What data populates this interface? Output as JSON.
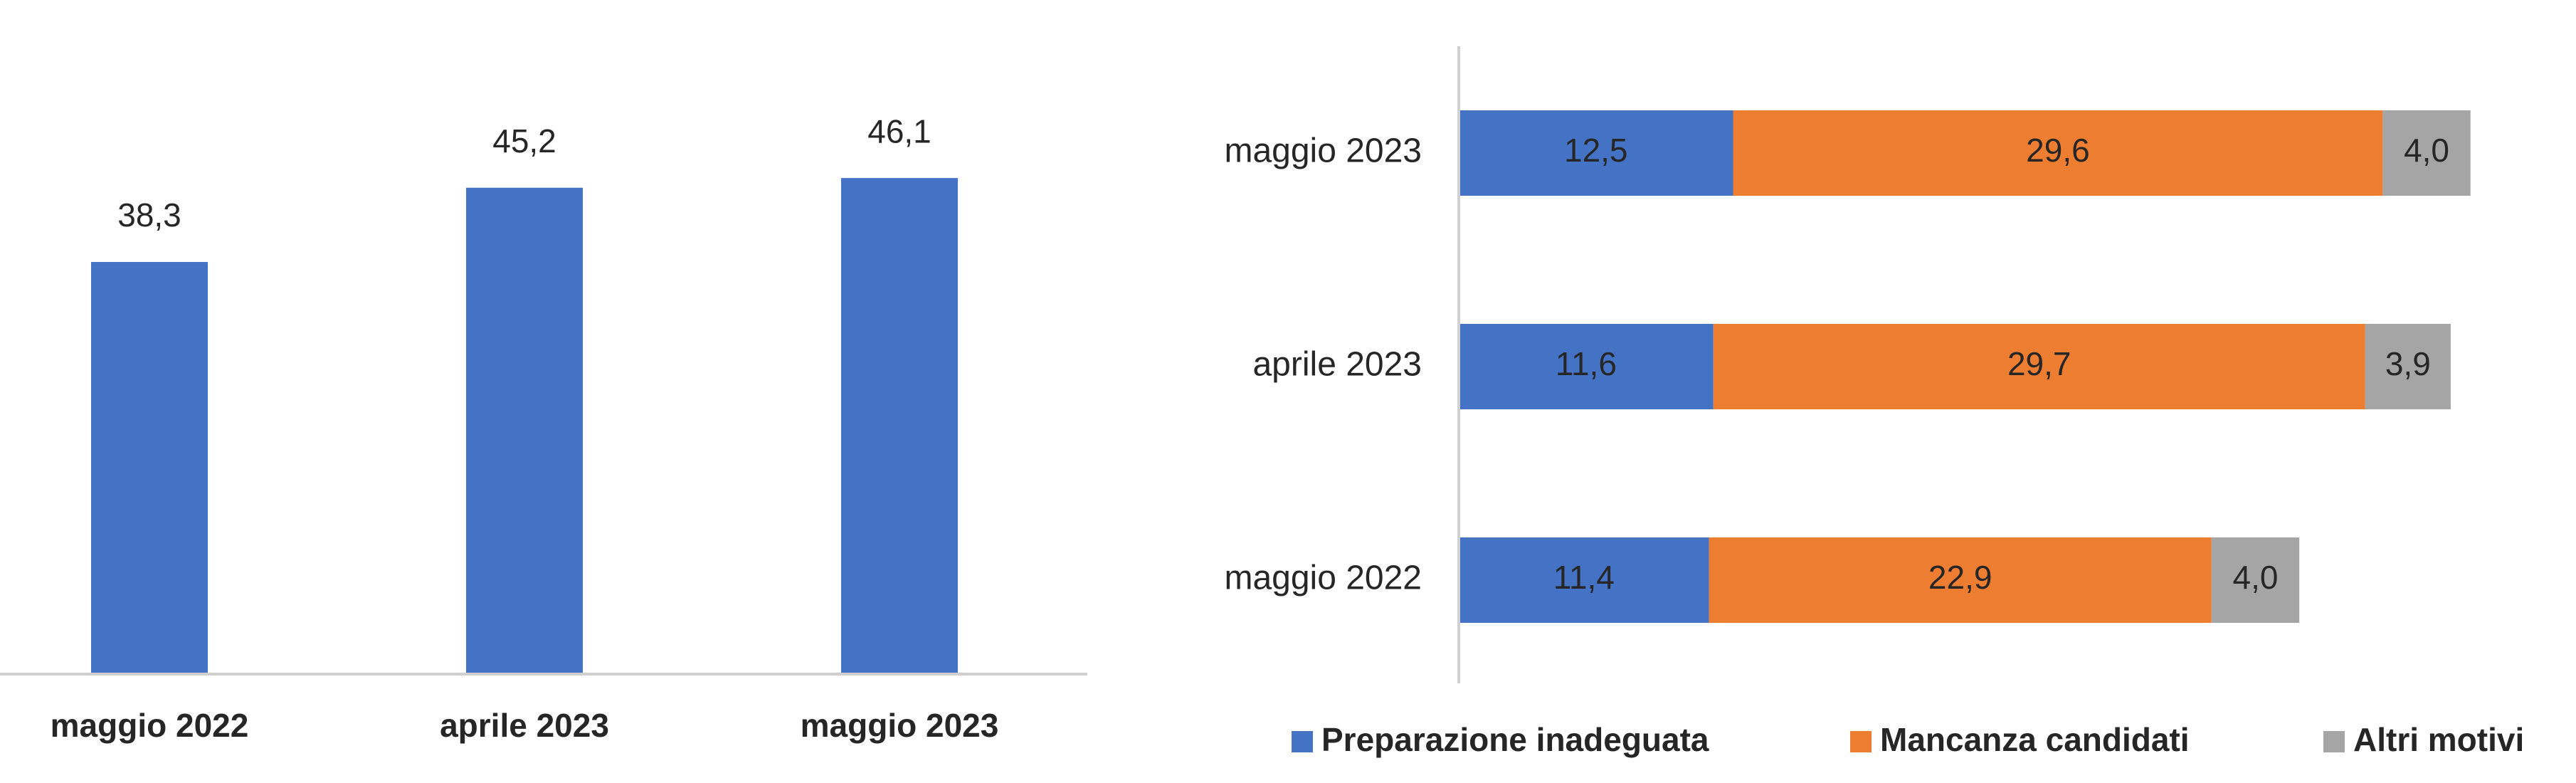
{
  "chart_data": [
    {
      "type": "bar",
      "categories": [
        "maggio 2022",
        "aprile 2023",
        "maggio 2023"
      ],
      "values": [
        38.3,
        45.2,
        46.1
      ],
      "value_labels": [
        "38,3",
        "45,2",
        "46,1"
      ],
      "color": "#4472c4",
      "ylim": [
        0,
        60
      ]
    },
    {
      "type": "hbar_stacked",
      "categories": [
        "maggio 2023",
        "aprile 2023",
        "maggio 2022"
      ],
      "series": [
        {
          "name": "Preparazione inadeguata",
          "color": "#4472c4",
          "values": [
            12.5,
            11.6,
            11.4
          ],
          "value_labels": [
            "12,5",
            "11,6",
            "11,4"
          ]
        },
        {
          "name": "Mancanza candidati",
          "color": "#ed7d31",
          "values": [
            29.6,
            29.7,
            22.9
          ],
          "value_labels": [
            "29,6",
            "29,7",
            "22,9"
          ]
        },
        {
          "name": "Altri motivi",
          "color": "#a5a5a5",
          "values": [
            4.0,
            3.9,
            4.0
          ],
          "value_labels": [
            "4,0",
            "3,9",
            "4,0"
          ]
        }
      ],
      "xlim": [
        0,
        50
      ],
      "legend": "bottom"
    }
  ]
}
